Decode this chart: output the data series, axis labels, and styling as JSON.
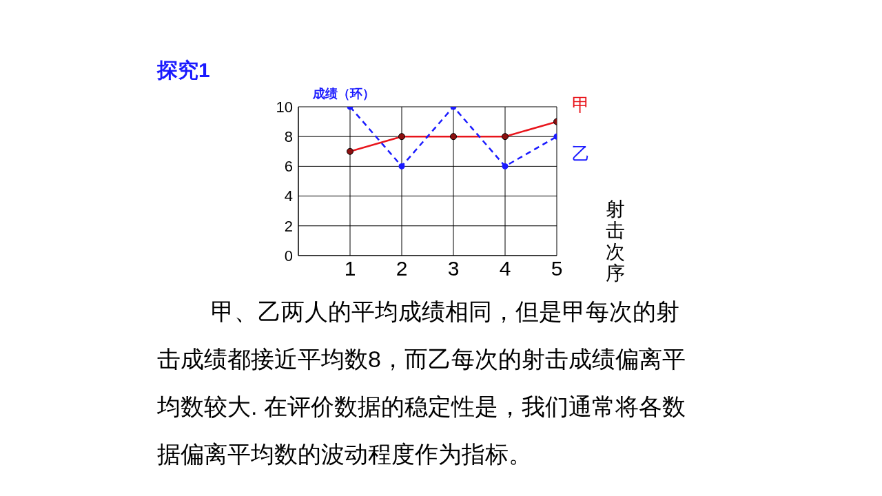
{
  "chart_data": {
    "type": "line",
    "title": "探究1",
    "ylabel": "成绩（环）",
    "xlabel": "射击次序",
    "x": [
      1,
      2,
      3,
      4,
      5
    ],
    "series": [
      {
        "name": "甲",
        "color": "#e8141b",
        "values": [
          7,
          8,
          8,
          8,
          9
        ],
        "line_style": "solid"
      },
      {
        "name": "乙",
        "color": "#1a1aff",
        "values": [
          10,
          6,
          10,
          6,
          8
        ],
        "line_style": "dashed"
      }
    ],
    "xlim": [
      0,
      5
    ],
    "xticks": [
      1,
      2,
      3,
      4,
      5
    ],
    "ylim": [
      0,
      10
    ],
    "yticks": [
      0,
      2,
      4,
      6,
      8,
      10
    ],
    "grid": true,
    "marker": "circle",
    "annotations": [
      "甲、乙两人的平均成绩相同，但是甲每次的射击成绩都接近平均数8，而乙每次的射击成绩偏离平均数较大. 在评价数据的稳定性是，我们通常将各数据偏离平均数的波动程度作为指标。"
    ]
  }
}
